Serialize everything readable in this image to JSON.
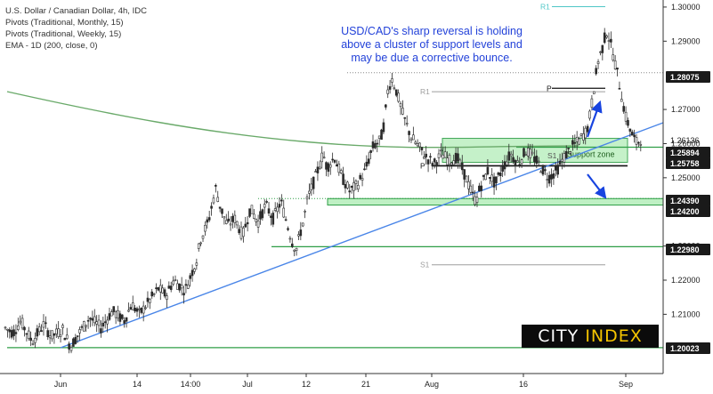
{
  "legend": {
    "line1": "U.S. Dollar / Canadian Dollar, 4h, IDC",
    "line2": "Pivots (Traditional, Monthly, 15)",
    "line3": "Pivots (Traditional, Weekly, 15)",
    "line4": "EMA - 1D (200, close, 0)"
  },
  "annotation": {
    "line1": "USD/CAD's sharp reversal is holding",
    "line2": "above a cluster of support levels and",
    "line3": "may be due a corrective bounce."
  },
  "watermark": {
    "word1": "CITY",
    "word2": "INDEX"
  },
  "colors": {
    "candle": "#2b2b2b",
    "ema": "#6aaa6a",
    "trendline": "#4a86e8",
    "support": "#2e9e46",
    "support_fill": "#bff0c4",
    "pivot": "#9e9e9e",
    "arrow": "#1844e0",
    "monthly_r1": "#4fc7c7",
    "price_tag_bg": "#1a1a1a"
  },
  "chart_data": {
    "type": "candlestick",
    "title": "U.S. Dollar / Canadian Dollar, 4h, IDC",
    "ylim": [
      1.196,
      1.302
    ],
    "x_tick_labels": [
      "Jun",
      "14",
      "14:00",
      "Jul",
      "12",
      "21",
      "Aug",
      "16",
      "Sep"
    ],
    "y_tick_labels": [
      "1.30000",
      "1.29000",
      "1.27000",
      "1.26000",
      "1.25000",
      "1.23000",
      "1.22000",
      "1.21000"
    ],
    "tagged_prices": [
      {
        "label": "1.28075",
        "value": 1.28075,
        "style": "dark"
      },
      {
        "label": "1.26136",
        "value": 1.26136,
        "style": "plain"
      },
      {
        "label": "1.25894",
        "value": 1.25894,
        "style": "dark"
      },
      {
        "label": "1.25758",
        "value": 1.25758,
        "style": "dark"
      },
      {
        "label": "1.24390",
        "value": 1.2439,
        "style": "dark"
      },
      {
        "label": "1.24200",
        "value": 1.242,
        "style": "dark"
      },
      {
        "label": "1.22980",
        "value": 1.2298,
        "style": "dark"
      },
      {
        "label": "1.20023",
        "value": 1.20023,
        "style": "dark"
      }
    ],
    "price_path": [
      [
        0.0,
        1.206
      ],
      [
        0.01,
        1.2045
      ],
      [
        0.02,
        1.208
      ],
      [
        0.035,
        1.202
      ],
      [
        0.05,
        1.207
      ],
      [
        0.06,
        1.2035
      ],
      [
        0.075,
        1.2055
      ],
      [
        0.085,
        1.2005
      ],
      [
        0.095,
        1.204
      ],
      [
        0.11,
        1.209
      ],
      [
        0.125,
        1.206
      ],
      [
        0.14,
        1.211
      ],
      [
        0.155,
        1.208
      ],
      [
        0.165,
        1.213
      ],
      [
        0.175,
        1.21
      ],
      [
        0.19,
        1.2145
      ],
      [
        0.2,
        1.2175
      ],
      [
        0.21,
        1.2155
      ],
      [
        0.22,
        1.22
      ],
      [
        0.235,
        1.217
      ],
      [
        0.25,
        1.226
      ],
      [
        0.255,
        1.232
      ],
      [
        0.265,
        1.237
      ],
      [
        0.275,
        1.247
      ],
      [
        0.28,
        1.242
      ],
      [
        0.29,
        1.236
      ],
      [
        0.3,
        1.238
      ],
      [
        0.31,
        1.233
      ],
      [
        0.32,
        1.241
      ],
      [
        0.33,
        1.237
      ],
      [
        0.34,
        1.242
      ],
      [
        0.35,
        1.238
      ],
      [
        0.36,
        1.243
      ],
      [
        0.37,
        1.235
      ],
      [
        0.375,
        1.231
      ],
      [
        0.38,
        1.229
      ],
      [
        0.39,
        1.238
      ],
      [
        0.395,
        1.244
      ],
      [
        0.405,
        1.25
      ],
      [
        0.415,
        1.257
      ],
      [
        0.42,
        1.253
      ],
      [
        0.43,
        1.256
      ],
      [
        0.44,
        1.25
      ],
      [
        0.45,
        1.246
      ],
      [
        0.46,
        1.248
      ],
      [
        0.47,
        1.252
      ],
      [
        0.48,
        1.259
      ],
      [
        0.49,
        1.261
      ],
      [
        0.495,
        1.266
      ],
      [
        0.5,
        1.276
      ],
      [
        0.505,
        1.279
      ],
      [
        0.51,
        1.276
      ],
      [
        0.515,
        1.272
      ],
      [
        0.52,
        1.268
      ],
      [
        0.53,
        1.262
      ],
      [
        0.54,
        1.259
      ],
      [
        0.55,
        1.256
      ],
      [
        0.56,
        1.254
      ],
      [
        0.57,
        1.257
      ],
      [
        0.58,
        1.255
      ],
      [
        0.59,
        1.256
      ],
      [
        0.6,
        1.251
      ],
      [
        0.61,
        1.245
      ],
      [
        0.615,
        1.243
      ],
      [
        0.62,
        1.247
      ],
      [
        0.63,
        1.252
      ],
      [
        0.64,
        1.248
      ],
      [
        0.65,
        1.253
      ],
      [
        0.66,
        1.257
      ],
      [
        0.67,
        1.254
      ],
      [
        0.68,
        1.258
      ],
      [
        0.69,
        1.256
      ],
      [
        0.7,
        1.253
      ],
      [
        0.71,
        1.25
      ],
      [
        0.72,
        1.252
      ],
      [
        0.73,
        1.256
      ],
      [
        0.74,
        1.259
      ],
      [
        0.75,
        1.261
      ],
      [
        0.76,
        1.264
      ],
      [
        0.765,
        1.27
      ],
      [
        0.77,
        1.278
      ],
      [
        0.775,
        1.285
      ],
      [
        0.78,
        1.288
      ],
      [
        0.785,
        1.293
      ],
      [
        0.79,
        1.29
      ],
      [
        0.795,
        1.285
      ],
      [
        0.8,
        1.28
      ],
      [
        0.805,
        1.274
      ],
      [
        0.81,
        1.268
      ],
      [
        0.815,
        1.265
      ],
      [
        0.82,
        1.262
      ],
      [
        0.825,
        1.26
      ],
      [
        0.83,
        1.2614
      ]
    ],
    "ema_200": [
      [
        0.0,
        1.279
      ],
      [
        0.2,
        1.271
      ],
      [
        0.35,
        1.265
      ],
      [
        0.5,
        1.2618
      ],
      [
        0.65,
        1.2605
      ],
      [
        0.83,
        1.26
      ]
    ],
    "support_zone": {
      "label": "Support zone",
      "top": 1.25894,
      "bottom": 1.25758
    },
    "lower_support_band": {
      "top": 1.2439,
      "bottom": 1.242
    },
    "pivot_levels": [
      {
        "label": "R1",
        "value": 1.3001,
        "type": "monthly"
      },
      {
        "label": "R1",
        "value": 1.2752,
        "type": "weekly"
      },
      {
        "label": "P",
        "value": 1.2762,
        "type": "weekly"
      },
      {
        "label": "P",
        "value": 1.2535,
        "type": "monthly"
      },
      {
        "label": "S1",
        "value": 1.2565,
        "type": "weekly"
      },
      {
        "label": "S1",
        "value": 1.2245,
        "type": "monthly"
      }
    ]
  }
}
